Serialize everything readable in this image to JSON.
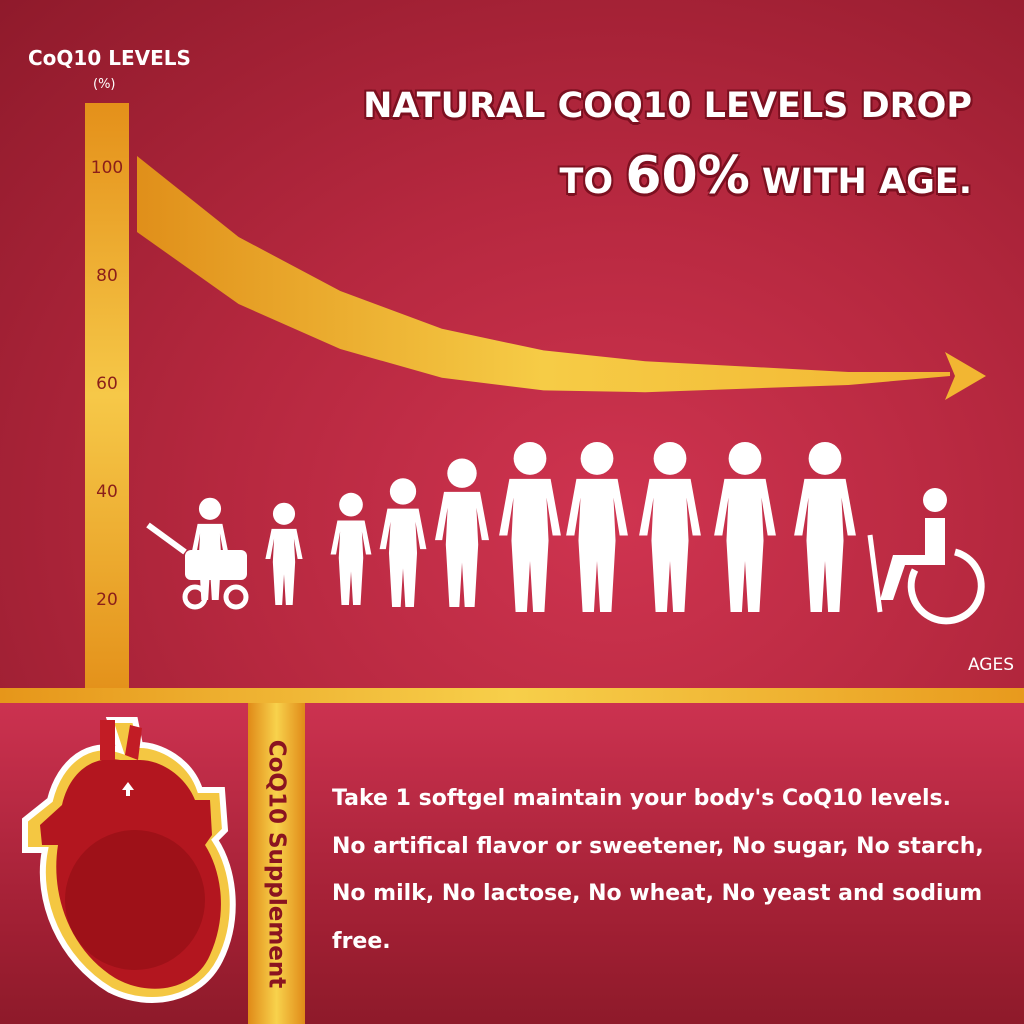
{
  "header": {
    "title_line1": "NATURAL COQ10 LEVELS DROP",
    "title_line2_pre": "TO ",
    "title_highlight": "60%",
    "title_line2_post": " WITH AGE."
  },
  "chart_data": {
    "type": "area",
    "ylabel": "CoQ10 LEVELS",
    "yunit": "(%)",
    "xlabel": "AGES",
    "yticks": [
      "100",
      "80",
      "60",
      "40",
      "20"
    ],
    "ylim": [
      15,
      110
    ],
    "values": [
      100,
      85,
      75,
      68,
      64,
      62,
      61,
      60,
      60
    ],
    "trend": "decreasing",
    "start_value": 100,
    "end_value": 60,
    "color": "#f2b632"
  },
  "figures": [
    "baby-stroller",
    "toddler",
    "girl-child",
    "child",
    "teen",
    "adult-man",
    "adult-woman",
    "adult-man-2",
    "adult-woman-2",
    "elderly-cane",
    "wheelchair"
  ],
  "footer": {
    "side_label": "CoQ10 Supplement",
    "lines": [
      "Take 1 softgel maintain your body's CoQ10 levels.",
      "No artifical flavor or sweetener, No sugar, No starch,",
      "No milk, No lactose, No wheat, No yeast and sodium",
      "free."
    ]
  },
  "colors": {
    "bg_red": "#b6283f",
    "gold": "#f2b632",
    "dark_red": "#8a1420"
  }
}
